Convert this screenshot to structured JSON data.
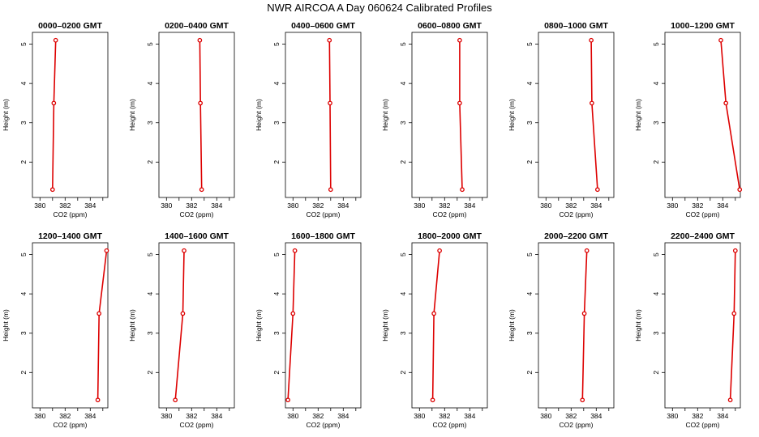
{
  "figure": {
    "title": "NWR AIRCOA A  Day 060624  Calibrated Profiles",
    "line_color": "#dd0000",
    "marker_color": "#dd0000"
  },
  "chart_data": [
    {
      "type": "line",
      "title": "0000–0200 GMT",
      "xlabel": "CO2 (ppm)",
      "ylabel": "Height (m)",
      "xlim": [
        379.4,
        385.4
      ],
      "ylim": [
        1.1,
        5.3
      ],
      "xticks": [
        "380",
        "382",
        "384"
      ],
      "yticks": [
        "2",
        "3",
        "4",
        "5"
      ],
      "series": [
        {
          "x": [
            381.0,
            381.1,
            381.25
          ],
          "y": [
            1.3,
            3.5,
            5.1
          ]
        }
      ]
    },
    {
      "type": "line",
      "title": "0200–0400 GMT",
      "xlabel": "CO2 (ppm)",
      "ylabel": "Height (m)",
      "xlim": [
        379.4,
        385.4
      ],
      "ylim": [
        1.1,
        5.3
      ],
      "xticks": [
        "380",
        "382",
        "384"
      ],
      "yticks": [
        "2",
        "3",
        "4",
        "5"
      ],
      "series": [
        {
          "x": [
            382.8,
            382.7,
            382.65
          ],
          "y": [
            1.3,
            3.5,
            5.1
          ]
        }
      ]
    },
    {
      "type": "line",
      "title": "0400–0600 GMT",
      "xlabel": "CO2 (ppm)",
      "ylabel": "Height (m)",
      "xlim": [
        379.4,
        385.4
      ],
      "ylim": [
        1.1,
        5.3
      ],
      "xticks": [
        "380",
        "382",
        "384"
      ],
      "yticks": [
        "2",
        "3",
        "4",
        "5"
      ],
      "series": [
        {
          "x": [
            383.0,
            382.95,
            382.9
          ],
          "y": [
            1.3,
            3.5,
            5.1
          ]
        }
      ]
    },
    {
      "type": "line",
      "title": "0600–0800 GMT",
      "xlabel": "CO2 (ppm)",
      "ylabel": "Height (m)",
      "xlim": [
        379.4,
        385.4
      ],
      "ylim": [
        1.1,
        5.3
      ],
      "xticks": [
        "380",
        "382",
        "384"
      ],
      "yticks": [
        "2",
        "3",
        "4",
        "5"
      ],
      "series": [
        {
          "x": [
            383.4,
            383.2,
            383.2
          ],
          "y": [
            1.3,
            3.5,
            5.1
          ]
        }
      ]
    },
    {
      "type": "line",
      "title": "0800–1000 GMT",
      "xlabel": "CO2 (ppm)",
      "ylabel": "Height (m)",
      "xlim": [
        379.4,
        385.4
      ],
      "ylim": [
        1.1,
        5.3
      ],
      "xticks": [
        "380",
        "382",
        "384"
      ],
      "yticks": [
        "2",
        "3",
        "4",
        "5"
      ],
      "series": [
        {
          "x": [
            384.1,
            383.65,
            383.6
          ],
          "y": [
            1.3,
            3.5,
            5.1
          ]
        }
      ]
    },
    {
      "type": "line",
      "title": "1000–1200 GMT",
      "xlabel": "CO2 (ppm)",
      "ylabel": "Height (m)",
      "xlim": [
        379.4,
        385.4
      ],
      "ylim": [
        1.1,
        5.3
      ],
      "xticks": [
        "380",
        "382",
        "384"
      ],
      "yticks": [
        "2",
        "3",
        "4",
        "5"
      ],
      "series": [
        {
          "x": [
            385.35,
            384.25,
            383.85
          ],
          "y": [
            1.3,
            3.5,
            5.1
          ]
        }
      ]
    },
    {
      "type": "line",
      "title": "1200–1400 GMT",
      "xlabel": "CO2 (ppm)",
      "ylabel": "Height (m)",
      "xlim": [
        379.4,
        385.4
      ],
      "ylim": [
        1.1,
        5.3
      ],
      "xticks": [
        "380",
        "382",
        "384"
      ],
      "yticks": [
        "2",
        "3",
        "4",
        "5"
      ],
      "series": [
        {
          "x": [
            384.6,
            384.7,
            385.3
          ],
          "y": [
            1.3,
            3.5,
            5.1
          ]
        }
      ]
    },
    {
      "type": "line",
      "title": "1400–1600 GMT",
      "xlabel": "CO2 (ppm)",
      "ylabel": "Height (m)",
      "xlim": [
        379.4,
        385.4
      ],
      "ylim": [
        1.1,
        5.3
      ],
      "xticks": [
        "380",
        "382",
        "384"
      ],
      "yticks": [
        "2",
        "3",
        "4",
        "5"
      ],
      "series": [
        {
          "x": [
            380.7,
            381.3,
            381.4
          ],
          "y": [
            1.3,
            3.5,
            5.1
          ]
        }
      ]
    },
    {
      "type": "line",
      "title": "1600–1800 GMT",
      "xlabel": "CO2 (ppm)",
      "ylabel": "Height (m)",
      "xlim": [
        379.4,
        385.4
      ],
      "ylim": [
        1.1,
        5.3
      ],
      "xticks": [
        "380",
        "382",
        "384"
      ],
      "yticks": [
        "2",
        "3",
        "4",
        "5"
      ],
      "series": [
        {
          "x": [
            379.6,
            380.0,
            380.15
          ],
          "y": [
            1.3,
            3.5,
            5.1
          ]
        }
      ]
    },
    {
      "type": "line",
      "title": "1800–2000 GMT",
      "xlabel": "CO2 (ppm)",
      "ylabel": "Height (m)",
      "xlim": [
        379.4,
        385.4
      ],
      "ylim": [
        1.1,
        5.3
      ],
      "xticks": [
        "380",
        "382",
        "384"
      ],
      "yticks": [
        "2",
        "3",
        "4",
        "5"
      ],
      "series": [
        {
          "x": [
            381.05,
            381.15,
            381.6
          ],
          "y": [
            1.3,
            3.5,
            5.1
          ]
        }
      ]
    },
    {
      "type": "line",
      "title": "2000–2200 GMT",
      "xlabel": "CO2 (ppm)",
      "ylabel": "Height (m)",
      "xlim": [
        379.4,
        385.4
      ],
      "ylim": [
        1.1,
        5.3
      ],
      "xticks": [
        "380",
        "382",
        "384"
      ],
      "yticks": [
        "2",
        "3",
        "4",
        "5"
      ],
      "series": [
        {
          "x": [
            382.9,
            383.05,
            383.25
          ],
          "y": [
            1.3,
            3.5,
            5.1
          ]
        }
      ]
    },
    {
      "type": "line",
      "title": "2200–2400 GMT",
      "xlabel": "CO2 (ppm)",
      "ylabel": "Height (m)",
      "xlim": [
        379.4,
        385.4
      ],
      "ylim": [
        1.1,
        5.3
      ],
      "xticks": [
        "380",
        "382",
        "384"
      ],
      "yticks": [
        "2",
        "3",
        "4",
        "5"
      ],
      "series": [
        {
          "x": [
            384.6,
            384.9,
            385.0
          ],
          "y": [
            1.3,
            3.5,
            5.1
          ]
        }
      ]
    }
  ]
}
